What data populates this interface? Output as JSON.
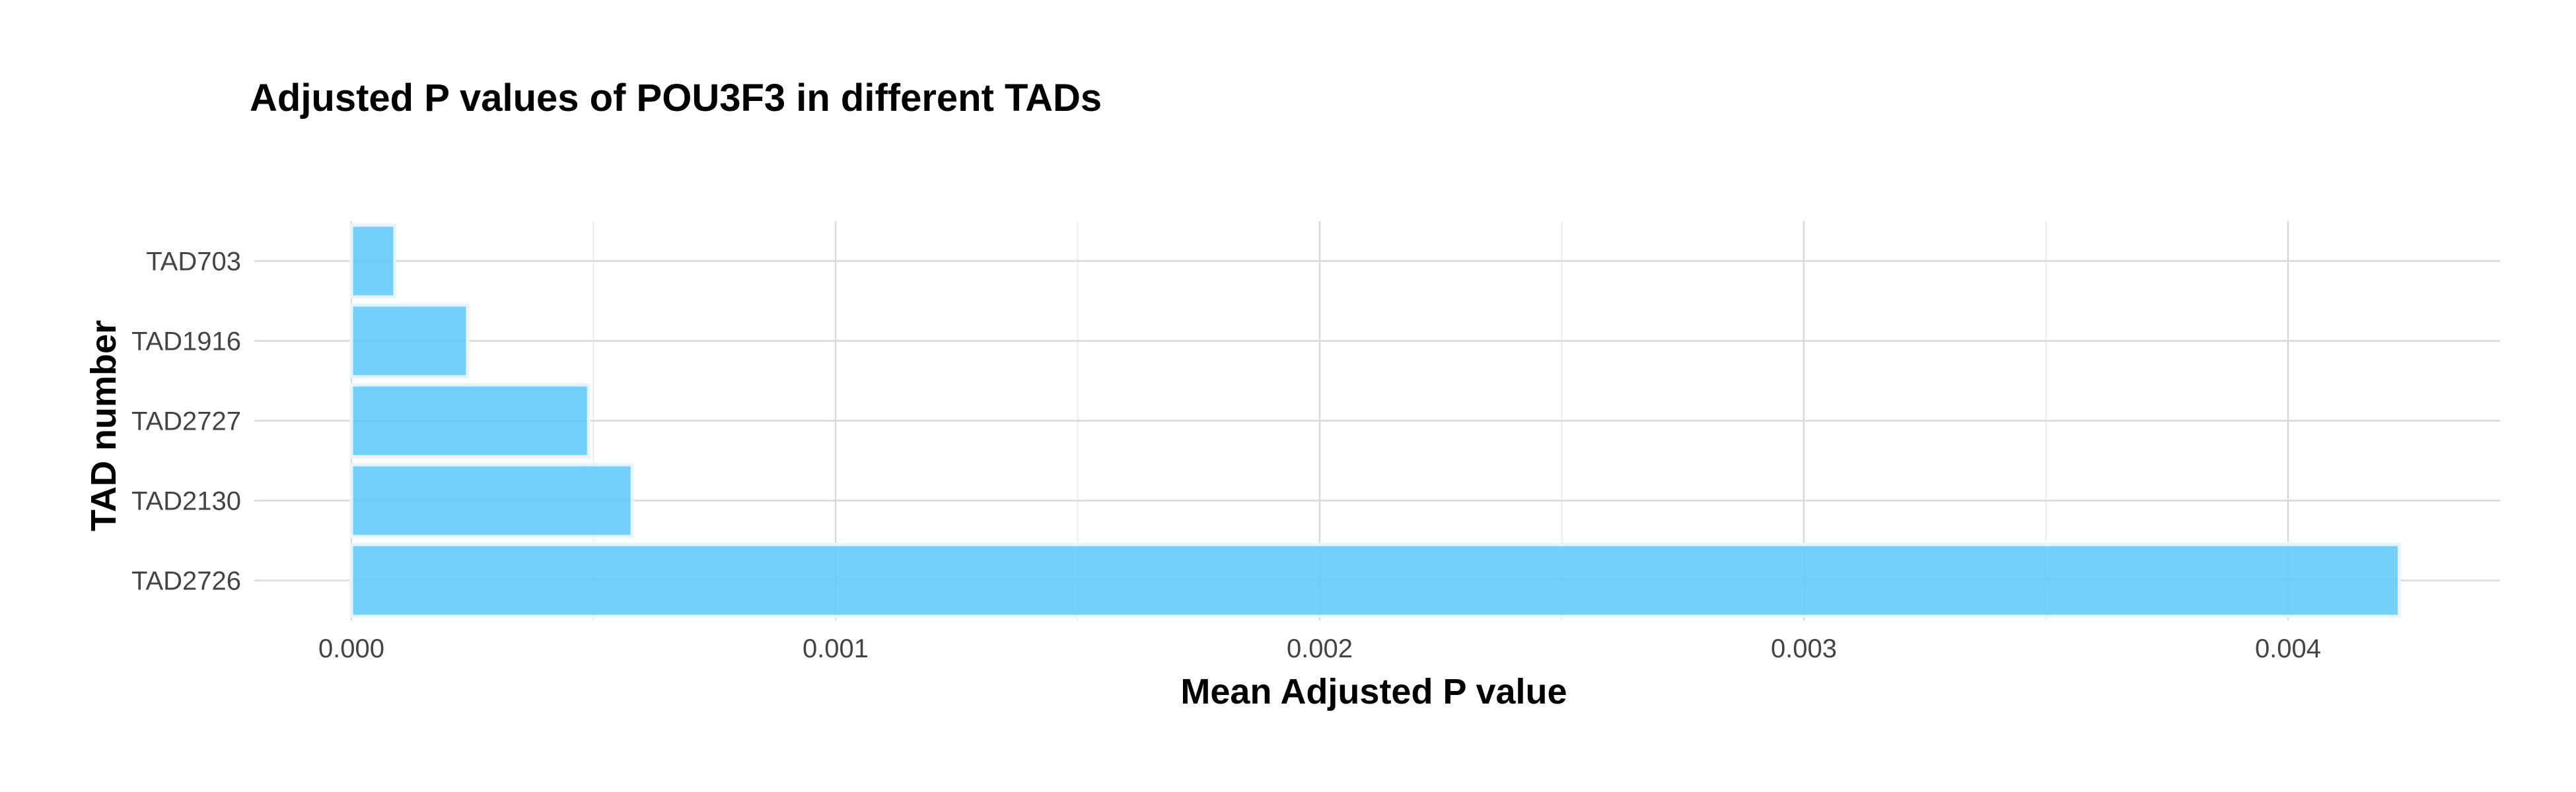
{
  "chart_data": {
    "type": "bar",
    "orientation": "horizontal",
    "title": "Adjusted P values of POU3F3 in different TADs",
    "xlabel": "Mean Adjusted P value",
    "ylabel": "TAD number",
    "categories": [
      "TAD703",
      "TAD1916",
      "TAD2727",
      "TAD2130",
      "TAD2726"
    ],
    "values": [
      9e-05,
      0.00024,
      0.00049,
      0.00058,
      0.00423
    ],
    "xlim": [
      -0.000225,
      0.00445
    ],
    "xticks": [
      0.0,
      0.001,
      0.002,
      0.003,
      0.004
    ],
    "xtick_labels": [
      "0.000",
      "0.001",
      "0.002",
      "0.003",
      "0.004"
    ],
    "grid": true,
    "legend": "none",
    "colors": {
      "bar_fill": "#5bc8fb",
      "bar_stroke": "#e8f4fc",
      "grid_major": "#d9d9d9",
      "grid_minor": "#ececec",
      "text": "#000000",
      "tick_text": "#444444"
    }
  }
}
